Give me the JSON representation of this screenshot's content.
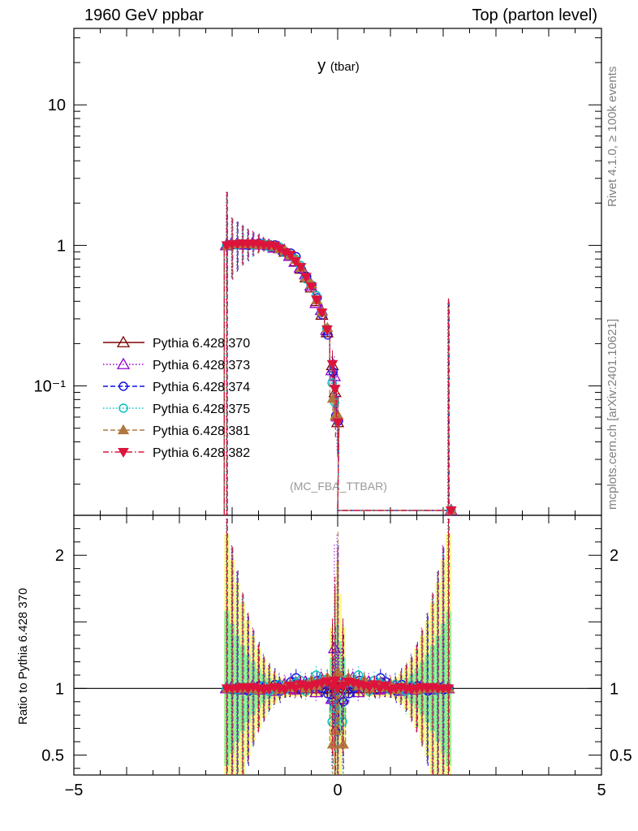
{
  "header": {
    "left": "1960 GeV ppbar",
    "right": "Top (parton level)"
  },
  "side_labels": {
    "rivet": "Rivet 4.1.0, ≥ 100k events",
    "mcplots": "mcplots.cern.ch [arXiv:2401.10621]"
  },
  "ratio_ylabel": "Ratio to Pythia 6.428 370",
  "chart_data": {
    "type": "line",
    "title": "y",
    "title_sub": "(tbar)",
    "analysis_tag": "(MC_FBA_TTBAR)",
    "xlabel": "",
    "ylabel": "",
    "xlim": [
      -5,
      5
    ],
    "ylim": [
      0.012,
      35
    ],
    "yscale": "log",
    "x_ticks": [
      "−5",
      "0",
      "5"
    ],
    "y_ticks": [
      {
        "value": 10,
        "label": "10"
      },
      {
        "value": 1,
        "label": "1"
      },
      {
        "value": 0.1,
        "label": "10⁻¹"
      }
    ],
    "x": [
      -2.1,
      -2.0,
      -1.9,
      -1.8,
      -1.7,
      -1.6,
      -1.5,
      -1.4,
      -1.3,
      -1.2,
      -1.1,
      -1.0,
      -0.9,
      -0.8,
      -0.7,
      -0.6,
      -0.5,
      -0.4,
      -0.3,
      -0.2,
      -0.1,
      -0.05,
      0.0
    ],
    "reference_values": [
      1.0,
      1.02,
      1.02,
      1.02,
      1.02,
      1.02,
      1.02,
      1.01,
      1.0,
      0.98,
      0.95,
      0.9,
      0.84,
      0.77,
      0.68,
      0.59,
      0.5,
      0.4,
      0.32,
      0.24,
      0.14,
      0.09,
      0.055
    ],
    "overflow_bins": {
      "x_from": 0.0,
      "x_to": 2.15,
      "value": 0.013
    },
    "spike": {
      "x": 2.1,
      "value": 0.4
    },
    "series": [
      {
        "name": "Pythia 6.428 370",
        "color": "#800000",
        "style": "solid",
        "marker": "triangle-up-open",
        "ratio": [
          1.0,
          1.0,
          1.0,
          1.0,
          1.0,
          1.0,
          1.0,
          1.0,
          1.0,
          1.0,
          1.0,
          1.0,
          1.0,
          1.0,
          1.0,
          1.0,
          1.0,
          1.0,
          1.0,
          1.0,
          1.0,
          1.0,
          1.0
        ]
      },
      {
        "name": "Pythia 6.428 373",
        "color": "#9400d3",
        "style": "dotted",
        "marker": "triangle-up-open",
        "ratio": [
          1.0,
          1.01,
          1.0,
          0.99,
          1.0,
          1.02,
          0.99,
          1.01,
          1.0,
          0.98,
          1.02,
          1.03,
          1.0,
          0.99,
          1.02,
          1.05,
          1.03,
          0.97,
          1.08,
          1.04,
          0.92,
          1.3,
          1.1
        ]
      },
      {
        "name": "Pythia 6.428 374",
        "color": "#1010e0",
        "style": "dashed",
        "marker": "circle-open",
        "ratio": [
          1.0,
          0.99,
          1.01,
          1.0,
          0.98,
          1.0,
          1.02,
          0.99,
          1.01,
          1.03,
          0.98,
          1.0,
          1.05,
          1.08,
          0.99,
          1.02,
          1.04,
          1.06,
          1.0,
          0.96,
          0.9,
          0.68,
          1.02
        ]
      },
      {
        "name": "Pythia 6.428 375",
        "color": "#00c0c0",
        "style": "dotted",
        "marker": "circle-open",
        "ratio": [
          1.0,
          1.0,
          0.99,
          1.01,
          1.0,
          0.99,
          1.0,
          1.02,
          0.98,
          1.0,
          1.03,
          0.99,
          1.02,
          1.04,
          1.06,
          0.98,
          1.05,
          1.1,
          1.04,
          1.07,
          0.75,
          0.85,
          1.05
        ]
      },
      {
        "name": "Pythia 6.428 381",
        "color": "#b07840",
        "style": "dashed",
        "marker": "triangle-up-filled",
        "ratio": [
          1.0,
          1.0,
          1.01,
          1.0,
          1.01,
          1.0,
          0.99,
          1.0,
          1.02,
          1.01,
          0.99,
          1.02,
          1.01,
          1.03,
          1.02,
          1.0,
          1.06,
          1.02,
          1.05,
          1.08,
          0.58,
          0.68,
          1.12
        ]
      },
      {
        "name": "Pythia 6.428 382",
        "color": "#dc143c",
        "style": "dashdot",
        "marker": "triangle-down-filled",
        "ratio": [
          1.0,
          1.0,
          1.0,
          1.01,
          1.0,
          1.01,
          1.0,
          0.99,
          1.0,
          1.01,
          1.0,
          0.99,
          1.02,
          1.0,
          1.03,
          1.01,
          1.02,
          1.03,
          1.04,
          1.05,
          1.02,
          1.06,
          1.0
        ]
      }
    ],
    "ratio_panel": {
      "ylim": [
        0.35,
        2.3
      ],
      "y_ticks": [
        {
          "value": 2,
          "label": "2"
        },
        {
          "value": 1,
          "label": "1"
        },
        {
          "value": 0.5,
          "label": "0.5"
        }
      ]
    }
  }
}
